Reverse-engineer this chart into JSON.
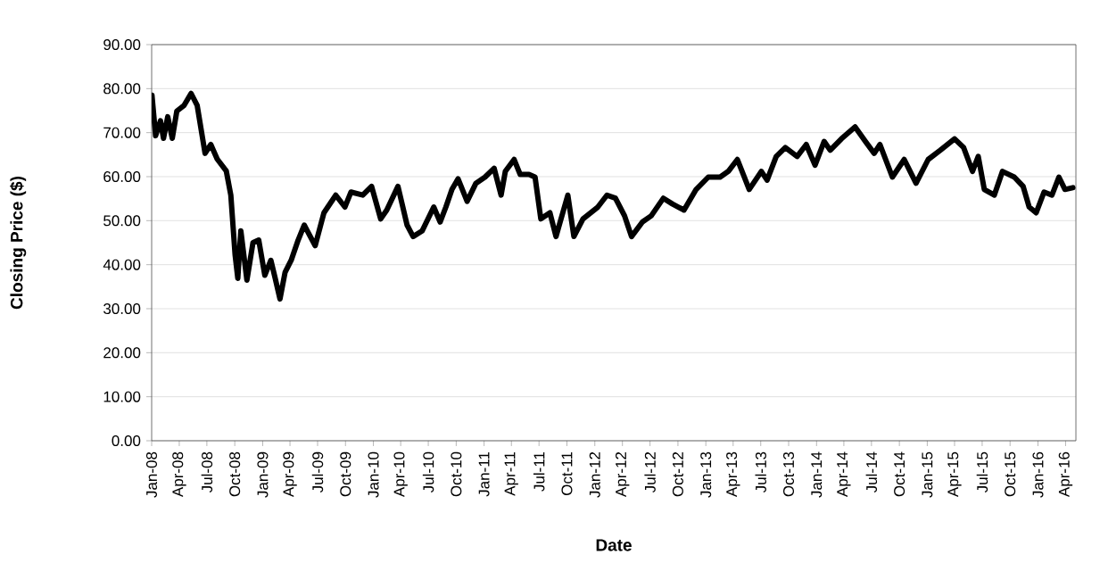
{
  "chart_data": {
    "type": "line",
    "xlabel": "Date",
    "ylabel": "Closing Price ($)",
    "xlim": [
      "2008-01-01",
      "2016-05-05"
    ],
    "ylim": [
      0,
      90
    ],
    "yticks": [
      {
        "value": 0,
        "label": "0.00"
      },
      {
        "value": 10,
        "label": "10.00"
      },
      {
        "value": 20,
        "label": "20.00"
      },
      {
        "value": 30,
        "label": "30.00"
      },
      {
        "value": 40,
        "label": "40.00"
      },
      {
        "value": 50,
        "label": "50.00"
      },
      {
        "value": 60,
        "label": "60.00"
      },
      {
        "value": 70,
        "label": "70.00"
      },
      {
        "value": 80,
        "label": "80.00"
      },
      {
        "value": 90,
        "label": "90.00"
      }
    ],
    "xticks": [
      {
        "value": "2008-01-01",
        "label": "Jan-08"
      },
      {
        "value": "2008-04-01",
        "label": "Apr-08"
      },
      {
        "value": "2008-07-01",
        "label": "Jul-08"
      },
      {
        "value": "2008-10-01",
        "label": "Oct-08"
      },
      {
        "value": "2009-01-01",
        "label": "Jan-09"
      },
      {
        "value": "2009-04-01",
        "label": "Apr-09"
      },
      {
        "value": "2009-07-01",
        "label": "Jul-09"
      },
      {
        "value": "2009-10-01",
        "label": "Oct-09"
      },
      {
        "value": "2010-01-01",
        "label": "Jan-10"
      },
      {
        "value": "2010-04-01",
        "label": "Apr-10"
      },
      {
        "value": "2010-07-01",
        "label": "Jul-10"
      },
      {
        "value": "2010-10-01",
        "label": "Oct-10"
      },
      {
        "value": "2011-01-01",
        "label": "Jan-11"
      },
      {
        "value": "2011-04-01",
        "label": "Apr-11"
      },
      {
        "value": "2011-07-01",
        "label": "Jul-11"
      },
      {
        "value": "2011-10-01",
        "label": "Oct-11"
      },
      {
        "value": "2012-01-01",
        "label": "Jan-12"
      },
      {
        "value": "2012-04-01",
        "label": "Apr-12"
      },
      {
        "value": "2012-07-01",
        "label": "Jul-12"
      },
      {
        "value": "2012-10-01",
        "label": "Oct-12"
      },
      {
        "value": "2013-01-01",
        "label": "Jan-13"
      },
      {
        "value": "2013-04-01",
        "label": "Apr-13"
      },
      {
        "value": "2013-07-01",
        "label": "Jul-13"
      },
      {
        "value": "2013-10-01",
        "label": "Oct-13"
      },
      {
        "value": "2014-01-01",
        "label": "Jan-14"
      },
      {
        "value": "2014-04-01",
        "label": "Apr-14"
      },
      {
        "value": "2014-07-01",
        "label": "Jul-14"
      },
      {
        "value": "2014-10-01",
        "label": "Oct-14"
      },
      {
        "value": "2015-01-01",
        "label": "Jan-15"
      },
      {
        "value": "2015-04-01",
        "label": "Apr-15"
      },
      {
        "value": "2015-07-01",
        "label": "Jul-15"
      },
      {
        "value": "2015-10-01",
        "label": "Oct-15"
      },
      {
        "value": "2016-01-01",
        "label": "Jan-16"
      },
      {
        "value": "2016-04-01",
        "label": "Apr-16"
      }
    ],
    "grid": "y",
    "marker": "none",
    "line_style": "solid",
    "x": [
      "2008-01-02",
      "2008-01-14",
      "2008-01-30",
      "2008-02-09",
      "2008-02-23",
      "2008-03-09",
      "2008-03-24",
      "2008-04-17",
      "2008-05-10",
      "2008-05-30",
      "2008-06-25",
      "2008-07-14",
      "2008-08-04",
      "2008-09-03",
      "2008-09-18",
      "2008-10-02",
      "2008-10-11",
      "2008-10-21",
      "2008-11-10",
      "2008-11-30",
      "2008-12-19",
      "2009-01-08",
      "2009-01-28",
      "2009-02-11",
      "2009-02-27",
      "2009-03-16",
      "2009-04-05",
      "2009-04-28",
      "2009-05-18",
      "2009-06-23",
      "2009-07-22",
      "2009-08-30",
      "2009-09-29",
      "2009-10-19",
      "2009-11-27",
      "2009-12-26",
      "2010-01-25",
      "2010-02-14",
      "2010-03-23",
      "2010-04-22",
      "2010-05-12",
      "2010-06-11",
      "2010-07-19",
      "2010-08-09",
      "2010-08-28",
      "2010-09-17",
      "2010-10-07",
      "2010-11-06",
      "2010-12-05",
      "2011-01-04",
      "2011-02-03",
      "2011-02-26",
      "2011-03-12",
      "2011-04-10",
      "2011-04-30",
      "2011-05-29",
      "2011-06-18",
      "2011-07-07",
      "2011-08-06",
      "2011-08-26",
      "2011-10-04",
      "2011-10-24",
      "2011-11-23",
      "2012-01-11",
      "2012-02-10",
      "2012-03-09",
      "2012-04-08",
      "2012-05-01",
      "2012-06-06",
      "2012-07-05",
      "2012-08-14",
      "2012-09-13",
      "2012-10-21",
      "2012-11-30",
      "2013-01-09",
      "2013-02-17",
      "2013-03-16",
      "2013-04-15",
      "2013-05-24",
      "2013-07-03",
      "2013-07-22",
      "2013-08-21",
      "2013-09-20",
      "2013-10-29",
      "2013-11-28",
      "2013-12-27",
      "2014-01-26",
      "2014-02-15",
      "2014-03-24",
      "2014-05-08",
      "2014-06-11",
      "2014-07-10",
      "2014-07-29",
      "2014-09-08",
      "2014-10-17",
      "2014-11-25",
      "2015-01-04",
      "2015-02-13",
      "2015-04-01",
      "2015-05-01",
      "2015-05-30",
      "2015-06-18",
      "2015-07-08",
      "2015-08-10",
      "2015-09-06",
      "2015-10-15",
      "2015-11-13",
      "2015-12-03",
      "2015-12-26",
      "2016-01-21",
      "2016-02-16",
      "2016-03-10",
      "2016-03-30",
      "2016-04-25"
    ],
    "series": [
      {
        "color": "#000000",
        "values": [
          78.5,
          69.3,
          72.7,
          68.7,
          73.6,
          68.7,
          74.9,
          76.2,
          78.9,
          76.2,
          65.3,
          67.3,
          64.0,
          61.3,
          55.8,
          42.3,
          36.9,
          47.7,
          36.5,
          45.0,
          45.6,
          37.6,
          41.0,
          37.0,
          32.2,
          38.3,
          41.0,
          45.6,
          49.0,
          44.3,
          51.8,
          55.8,
          53.1,
          56.5,
          55.8,
          57.8,
          50.4,
          52.4,
          57.8,
          49.0,
          46.4,
          47.7,
          53.1,
          49.7,
          53.1,
          57.1,
          59.5,
          54.4,
          58.5,
          59.9,
          61.9,
          55.8,
          61.2,
          63.9,
          60.5,
          60.5,
          59.9,
          50.4,
          51.8,
          46.4,
          55.8,
          46.4,
          50.4,
          53.1,
          55.8,
          55.1,
          51.1,
          46.4,
          49.7,
          51.1,
          55.1,
          53.8,
          52.4,
          57.1,
          59.9,
          59.9,
          61.2,
          63.9,
          57.1,
          61.2,
          59.2,
          64.6,
          66.6,
          64.6,
          67.3,
          62.6,
          68.0,
          66.0,
          68.6,
          71.3,
          68.0,
          65.3,
          67.3,
          59.9,
          63.9,
          58.5,
          63.9,
          66.0,
          68.6,
          66.6,
          61.2,
          64.6,
          57.1,
          55.8,
          61.2,
          59.9,
          57.8,
          53.1,
          51.8,
          56.5,
          55.8,
          59.9,
          57.1,
          57.5
        ]
      }
    ]
  }
}
